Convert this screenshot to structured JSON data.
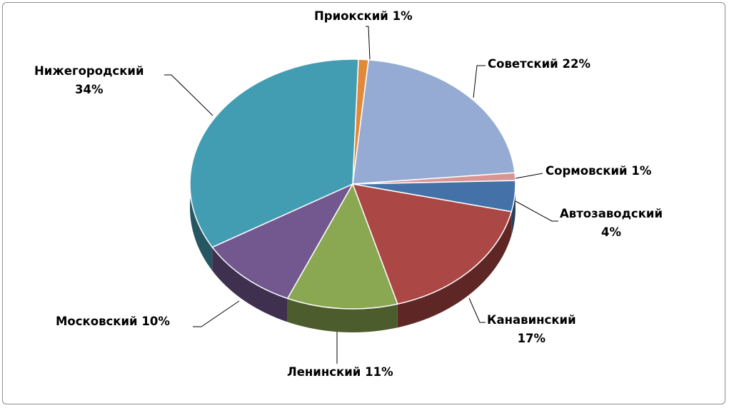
{
  "chart_data": {
    "type": "pie",
    "style": "3d",
    "title": "",
    "legend": "none",
    "slices": [
      {
        "label": "Приокский",
        "value": 1,
        "color": "#e0893a"
      },
      {
        "label": "Советский",
        "value": 22,
        "color": "#96abd3"
      },
      {
        "label": "Сормовский",
        "value": 1,
        "color": "#d99594"
      },
      {
        "label": "Автозаводский",
        "value": 4,
        "color": "#4472a8"
      },
      {
        "label": "Канавинский",
        "value": 17,
        "color": "#ab4744"
      },
      {
        "label": "Ленинский",
        "value": 11,
        "color": "#8aa752"
      },
      {
        "label": "Московский",
        "value": 10,
        "color": "#72588f"
      },
      {
        "label": "Нижегородский",
        "value": 34,
        "color": "#439db2"
      }
    ]
  }
}
